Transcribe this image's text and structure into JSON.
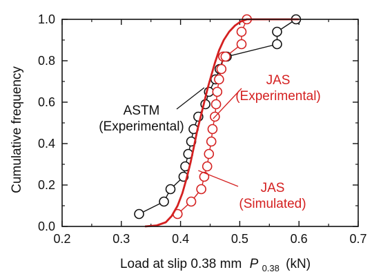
{
  "chart_data": {
    "type": "scatter",
    "title": "",
    "xlabel": "Load at slip 0.38 mm",
    "xlabel_symbol": "P",
    "xlabel_subscript": "0.38",
    "xlabel_unit": "(kN)",
    "ylabel": "Cumulative frequency",
    "xlim": [
      0.2,
      0.7
    ],
    "ylim": [
      0.0,
      1.0
    ],
    "xticks": [
      "0.2",
      "0.3",
      "0.4",
      "0.5",
      "0.6",
      "0.7"
    ],
    "yticks": [
      "0.0",
      "0.2",
      "0.4",
      "0.6",
      "0.8",
      "1.0"
    ],
    "grid": false,
    "colors": {
      "astm": "#111111",
      "jas": "#d42020",
      "axis": "#111111"
    },
    "series": [
      {
        "key": "astm",
        "style": "line-open-circle",
        "x": [
          0.33,
          0.372,
          0.383,
          0.405,
          0.408,
          0.413,
          0.418,
          0.422,
          0.43,
          0.442,
          0.448,
          0.459,
          0.466,
          0.473,
          0.478,
          0.563,
          0.563,
          0.595
        ],
        "y": [
          0.06,
          0.12,
          0.18,
          0.24,
          0.29,
          0.35,
          0.41,
          0.47,
          0.53,
          0.59,
          0.65,
          0.71,
          0.76,
          0.82,
          0.82,
          0.88,
          0.94,
          1.0
        ]
      },
      {
        "key": "jas_exp",
        "style": "line-open-circle",
        "x": [
          0.395,
          0.418,
          0.435,
          0.44,
          0.445,
          0.448,
          0.452,
          0.454,
          0.458,
          0.46,
          0.462,
          0.465,
          0.469,
          0.472,
          0.476,
          0.503,
          0.503,
          0.512
        ],
        "y": [
          0.06,
          0.12,
          0.18,
          0.24,
          0.29,
          0.35,
          0.41,
          0.47,
          0.53,
          0.59,
          0.65,
          0.71,
          0.76,
          0.82,
          0.82,
          0.88,
          0.94,
          1.0
        ]
      },
      {
        "key": "jas_sim",
        "style": "line",
        "x": [
          0.34,
          0.36,
          0.375,
          0.385,
          0.395,
          0.403,
          0.41,
          0.417,
          0.423,
          0.428,
          0.434,
          0.44,
          0.446,
          0.452,
          0.458,
          0.465,
          0.473,
          0.482,
          0.492,
          0.502,
          0.512,
          0.525,
          0.56,
          0.6
        ],
        "y": [
          0.0,
          0.005,
          0.02,
          0.05,
          0.1,
          0.16,
          0.23,
          0.31,
          0.39,
          0.46,
          0.53,
          0.6,
          0.67,
          0.73,
          0.79,
          0.85,
          0.9,
          0.94,
          0.97,
          0.99,
          1.0,
          1.0,
          1.0,
          1.0
        ]
      }
    ],
    "annotations": [
      {
        "key": "astm",
        "lines": [
          "ASTM",
          "(Experimental)"
        ],
        "color": "#111111",
        "pointer": [
          0.44,
          0.67
        ]
      },
      {
        "key": "jas_exp",
        "lines": [
          "JAS",
          "(Experimental)"
        ],
        "color": "#d42020",
        "pointer": [
          0.455,
          0.52
        ]
      },
      {
        "key": "jas_sim",
        "lines": [
          "JAS",
          "(Simulated)"
        ],
        "color": "#d42020",
        "pointer": [
          0.43,
          0.27
        ]
      }
    ]
  }
}
